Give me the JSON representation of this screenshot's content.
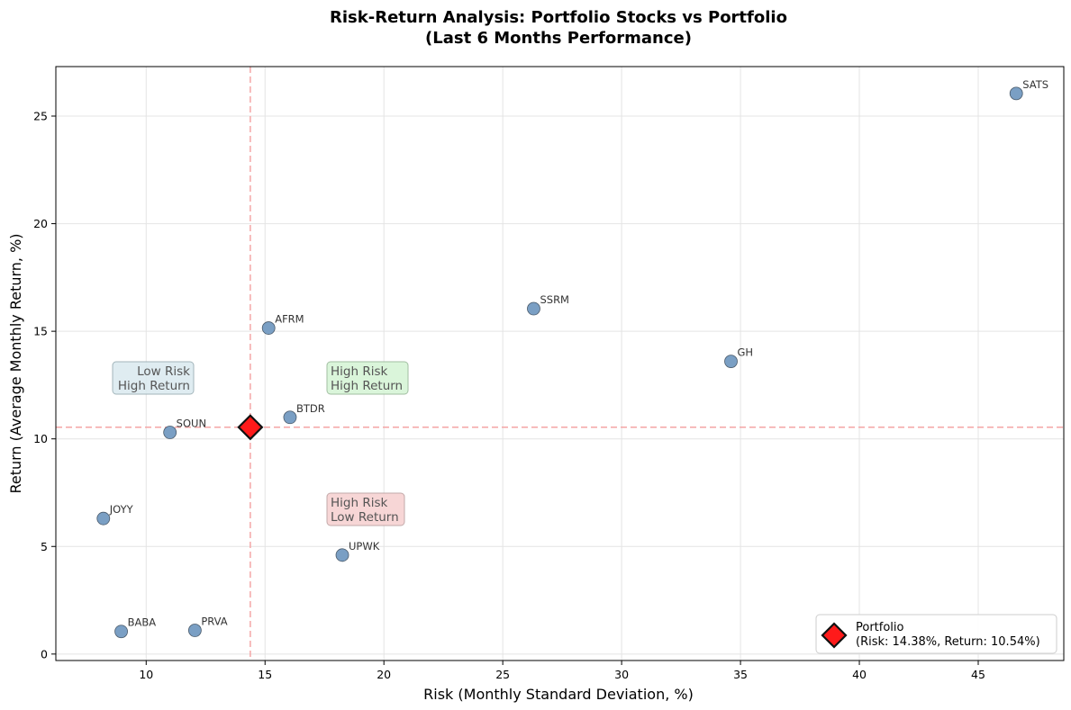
{
  "chart_data": {
    "type": "scatter",
    "title_line1": "Risk-Return Analysis: Portfolio Stocks vs Portfolio",
    "title_line2": "(Last 6 Months Performance)",
    "xlabel": "Risk (Monthly Standard Deviation, %)",
    "ylabel": "Return (Average Monthly Return, %)",
    "xlim": [
      6.2,
      48.6
    ],
    "ylim": [
      -0.3,
      27.3
    ],
    "xticks": [
      10,
      15,
      20,
      25,
      30,
      35,
      40,
      45
    ],
    "yticks": [
      0,
      5,
      10,
      15,
      20,
      25
    ],
    "grid": true,
    "points": [
      {
        "label": "SATS",
        "x": 46.6,
        "y": 26.05
      },
      {
        "label": "SSRM",
        "x": 26.3,
        "y": 16.05
      },
      {
        "label": "AFRM",
        "x": 15.15,
        "y": 15.15
      },
      {
        "label": "GH",
        "x": 34.6,
        "y": 13.6
      },
      {
        "label": "BTDR",
        "x": 16.05,
        "y": 11.0
      },
      {
        "label": "SOUN",
        "x": 11.0,
        "y": 10.3
      },
      {
        "label": "JOYY",
        "x": 8.2,
        "y": 6.3
      },
      {
        "label": "UPWK",
        "x": 18.25,
        "y": 4.6
      },
      {
        "label": "BABA",
        "x": 8.95,
        "y": 1.05
      },
      {
        "label": "PRVA",
        "x": 12.05,
        "y": 1.1
      }
    ],
    "portfolio": {
      "x": 14.38,
      "y": 10.54
    },
    "quadrant_labels": [
      {
        "line1": "Low Risk",
        "line2": "High Return",
        "fill": "#dcebf0",
        "stroke": "#9aaeb4"
      },
      {
        "line1": "High Risk",
        "line2": "High Return",
        "fill": "#d6f5d6",
        "stroke": "#98b898"
      },
      {
        "line1": "High Risk",
        "line2": "Low Return",
        "fill": "#f7d2d2",
        "stroke": "#bca0a0"
      }
    ],
    "legend": {
      "position": "lower-right",
      "line1": "Portfolio",
      "line2": "(Risk: 14.38%, Return: 10.54%)"
    },
    "colors": {
      "points": "#7a9fc4",
      "point_edge": "#4a5a6a",
      "portfolio": "#ff1a1a",
      "reference_lines": "#f4a6a6",
      "grid": "#e4e4e4"
    }
  }
}
